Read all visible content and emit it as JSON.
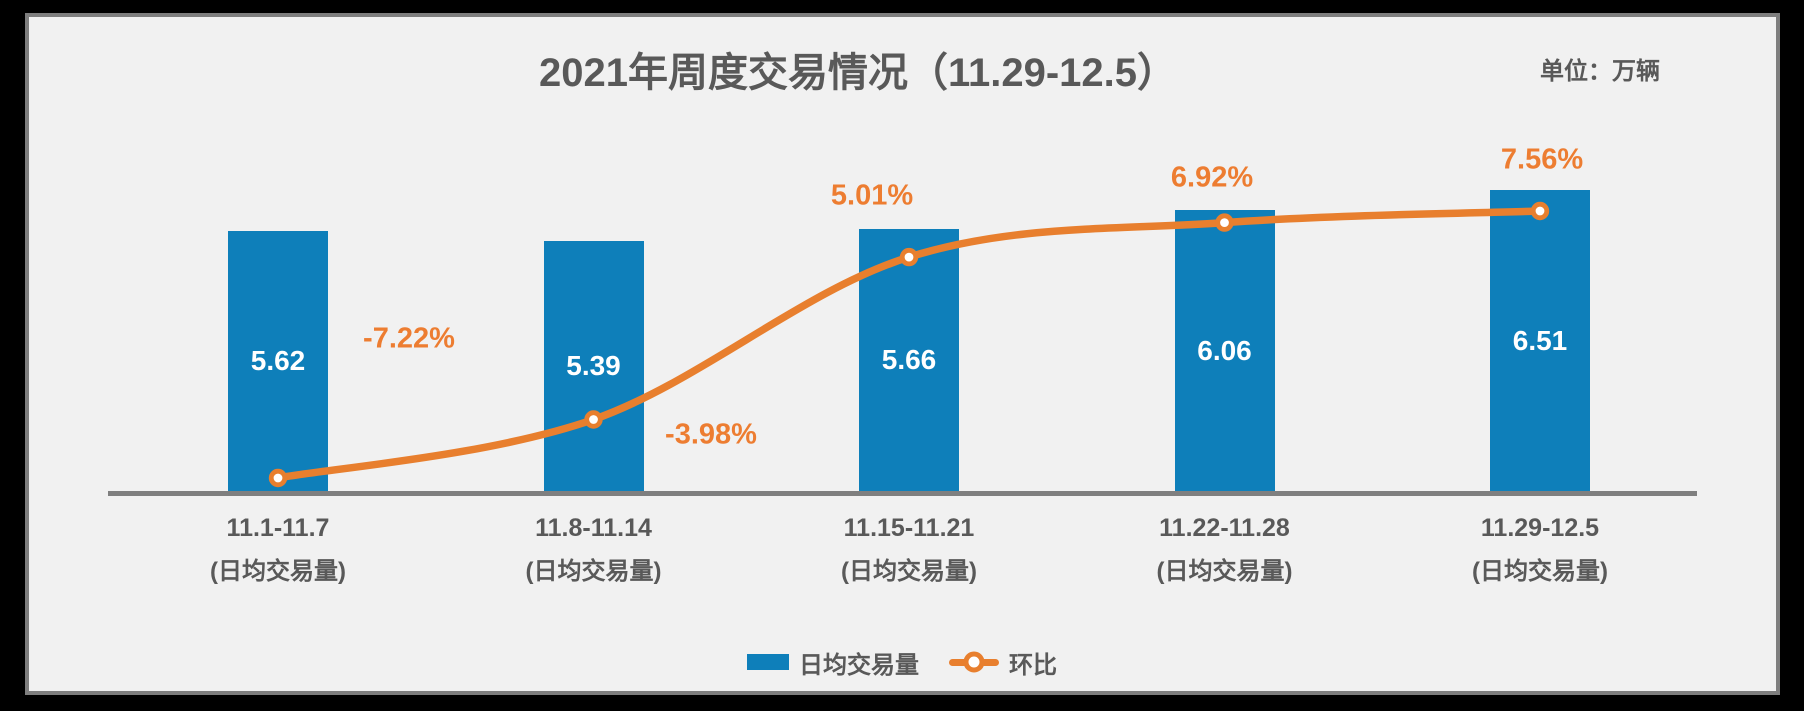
{
  "title": "2021年周度交易情况（11.29-12.5）",
  "unit_label": "单位：万辆",
  "legend": {
    "bar_label": "日均交易量",
    "line_label": "环比"
  },
  "colors": {
    "bar": "#0E7FBA",
    "line": "#E87F2E",
    "label_orange": "#ED7D31",
    "text_gray": "#595959",
    "axis": "#7F7F7F",
    "panel_bg": "#F1F1F1",
    "panel_border": "#7E7E7E",
    "outer_bg": "#000000"
  },
  "chart_data": {
    "type": "combo-bar-line",
    "title": "2021年周度交易情况（11.29-12.5）",
    "unit": "万辆",
    "categories": [
      "11.1-11.7",
      "11.8-11.14",
      "11.15-11.21",
      "11.22-11.28",
      "11.29-12.5"
    ],
    "category_sublabels": [
      "(日均交易量)",
      "(日均交易量)",
      "(日均交易量)",
      "(日均交易量)",
      "(日均交易量)"
    ],
    "series": [
      {
        "name": "日均交易量",
        "type": "bar",
        "values": [
          5.62,
          5.39,
          5.66,
          6.06,
          6.51
        ],
        "value_labels": [
          "5.62",
          "5.39",
          "5.66",
          "6.06",
          "6.51"
        ],
        "color": "#0E7FBA"
      },
      {
        "name": "环比",
        "type": "line",
        "values": [
          -7.22,
          -3.98,
          5.01,
          6.92,
          7.56
        ],
        "value_labels": [
          "-7.22%",
          "-3.98%",
          "5.01%",
          "6.92%",
          "7.56%"
        ],
        "color": "#E87F2E"
      }
    ],
    "gridlines": false,
    "y_axis_visible": false,
    "legend_position": "bottom"
  }
}
